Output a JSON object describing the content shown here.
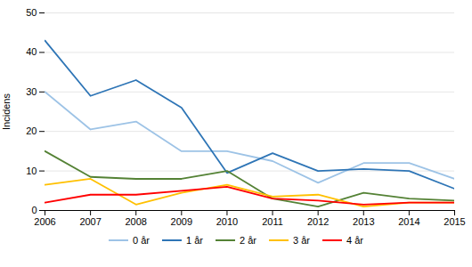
{
  "chart_data": {
    "type": "line",
    "x": [
      2006,
      2007,
      2008,
      2009,
      2010,
      2011,
      2012,
      2013,
      2014,
      2015
    ],
    "series": [
      {
        "name": "0 år",
        "color": "#9DC3E6",
        "values": [
          30,
          20.5,
          22.5,
          15,
          15,
          12.5,
          7,
          12,
          12,
          8
        ]
      },
      {
        "name": "1 år",
        "color": "#2E75B6",
        "values": [
          43,
          29,
          33,
          26,
          9.5,
          14.5,
          10,
          10.5,
          10,
          5.5
        ]
      },
      {
        "name": "2 år",
        "color": "#548235",
        "values": [
          15,
          8.5,
          8,
          8,
          10,
          3,
          1,
          4.5,
          3,
          2.5
        ]
      },
      {
        "name": "3 år",
        "color": "#FFC000",
        "values": [
          6.5,
          8,
          1.5,
          4.5,
          6.5,
          3.5,
          4,
          1,
          2,
          2
        ]
      },
      {
        "name": "4 år",
        "color": "#FF0000",
        "values": [
          2,
          4,
          4,
          5,
          6,
          3,
          2.5,
          1.5,
          2,
          2
        ]
      }
    ],
    "ylabel": "Incidens",
    "xlim": [
      2006,
      2015
    ],
    "xticks": [
      2006,
      2007,
      2008,
      2009,
      2010,
      2011,
      2012,
      2013,
      2014,
      2015
    ],
    "ylim": [
      0,
      50
    ],
    "yticks": [
      0,
      10,
      20,
      30,
      40,
      50
    ],
    "grid": true,
    "legend": "bottom"
  }
}
